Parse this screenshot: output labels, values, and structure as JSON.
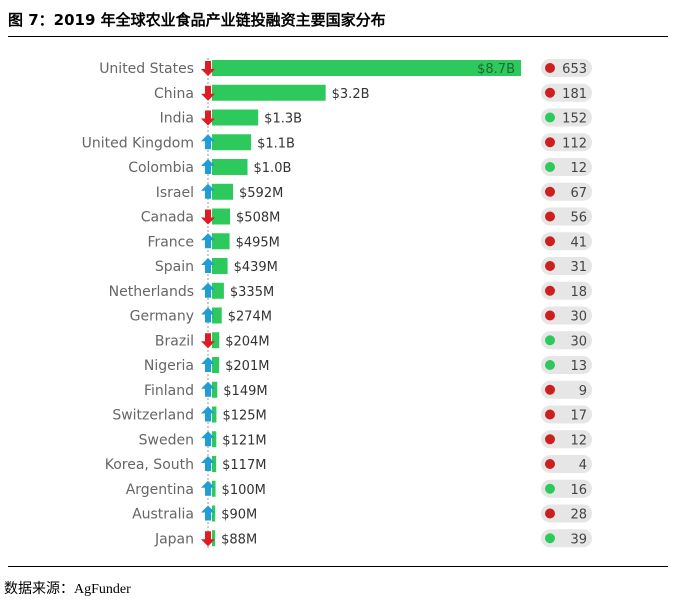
{
  "header": {
    "title": "图 7：2019 年全球农业食品产业链投融资主要国家分布"
  },
  "footer": {
    "source": "数据来源：AgFunder"
  },
  "colors": {
    "bar": "#2ec95c",
    "arrow_up": "#1e9ed3",
    "arrow_down": "#e01b22",
    "dot_red": "#cc1f1f",
    "dot_green": "#2ec95c",
    "pill": "#e6e6e6",
    "label": "#666666",
    "value_label": "#333333"
  },
  "chart_data": {
    "type": "bar",
    "orientation": "horizontal",
    "title": "2019 年全球农业食品产业链投融资主要国家分布",
    "xlabel": "",
    "ylabel": "",
    "categories": [
      "United States",
      "China",
      "India",
      "United Kingdom",
      "Colombia",
      "Israel",
      "Canada",
      "France",
      "Spain",
      "Netherlands",
      "Germany",
      "Brazil",
      "Nigeria",
      "Finland",
      "Switzerland",
      "Sweden",
      "Korea, South",
      "Argentina",
      "Australia",
      "Japan"
    ],
    "values_musd": [
      8700,
      3200,
      1300,
      1100,
      1000,
      592,
      508,
      495,
      439,
      335,
      274,
      204,
      201,
      149,
      125,
      121,
      117,
      100,
      90,
      88
    ],
    "value_labels": [
      "$8.7B",
      "$3.2B",
      "$1.3B",
      "$1.1B",
      "$1.0B",
      "$592M",
      "$508M",
      "$495M",
      "$439M",
      "$335M",
      "$274M",
      "$204M",
      "$201M",
      "$149M",
      "$125M",
      "$121M",
      "$117M",
      "$100M",
      "$90M",
      "$88M"
    ],
    "trend": [
      "down",
      "down",
      "down",
      "up",
      "up",
      "up",
      "down",
      "up",
      "up",
      "up",
      "up",
      "down",
      "up",
      "up",
      "up",
      "up",
      "up",
      "up",
      "up",
      "down"
    ],
    "deal_counts": [
      653,
      181,
      152,
      112,
      12,
      67,
      56,
      41,
      31,
      18,
      30,
      30,
      13,
      9,
      17,
      12,
      4,
      16,
      28,
      39
    ],
    "deal_dot": [
      "red",
      "red",
      "green",
      "red",
      "green",
      "red",
      "red",
      "red",
      "red",
      "red",
      "red",
      "green",
      "green",
      "red",
      "red",
      "red",
      "red",
      "green",
      "red",
      "green"
    ],
    "xlim": [
      0,
      8700
    ]
  }
}
